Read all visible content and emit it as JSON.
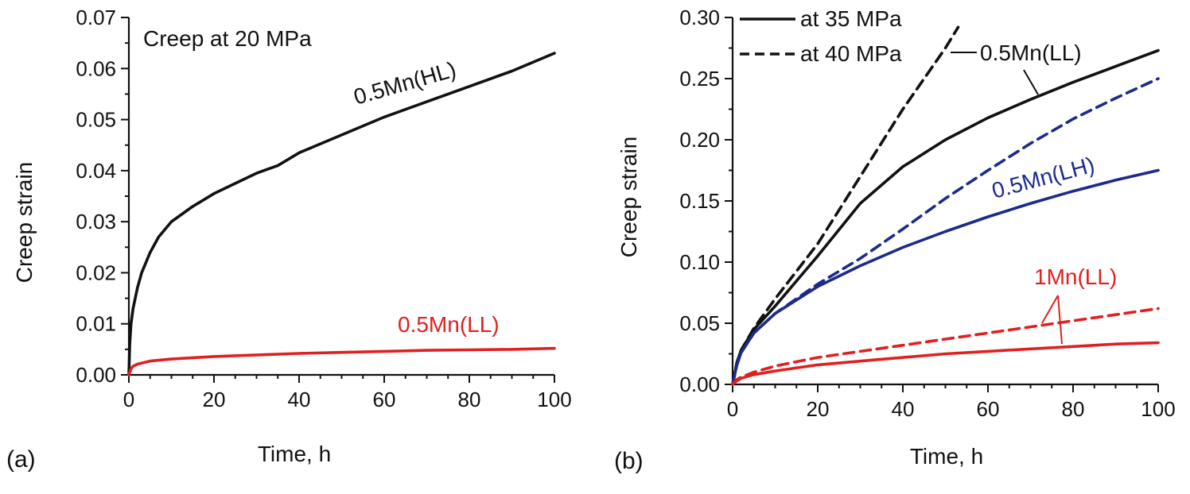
{
  "chart_data": [
    {
      "type": "line",
      "panel_label": "(a)",
      "title": "Creep at 20 MPa",
      "xlabel": "Time, h",
      "ylabel": "Creep strain",
      "xlim": [
        0,
        100
      ],
      "ylim": [
        0,
        0.07
      ],
      "xticks": [
        0,
        20,
        40,
        60,
        80,
        100
      ],
      "yticks": [
        0.0,
        0.01,
        0.02,
        0.03,
        0.04,
        0.05,
        0.06,
        0.07
      ],
      "ytick_labels": [
        "0.00",
        "0.01",
        "0.02",
        "0.03",
        "0.04",
        "0.05",
        "0.06",
        "0.07"
      ],
      "series": [
        {
          "name": "0.5Mn(HL)",
          "color": "#111111",
          "dash": "solid",
          "x": [
            0,
            0.2,
            0.5,
            1,
            2,
            3,
            5,
            7,
            10,
            15,
            20,
            25,
            30,
            35,
            40,
            50,
            60,
            70,
            80,
            90,
            100
          ],
          "y": [
            0,
            0.006,
            0.01,
            0.013,
            0.017,
            0.02,
            0.024,
            0.027,
            0.03,
            0.033,
            0.0355,
            0.0375,
            0.0395,
            0.041,
            0.0435,
            0.047,
            0.0505,
            0.0535,
            0.0565,
            0.0595,
            0.063
          ]
        },
        {
          "name": "0.5Mn(LL)",
          "color": "#e02020",
          "dash": "solid",
          "x": [
            0,
            0.5,
            1,
            2,
            5,
            10,
            20,
            30,
            40,
            50,
            60,
            70,
            80,
            90,
            100
          ],
          "y": [
            0,
            0.0012,
            0.0017,
            0.0021,
            0.0027,
            0.0031,
            0.0036,
            0.0039,
            0.0042,
            0.0044,
            0.0046,
            0.0048,
            0.0049,
            0.005,
            0.0052
          ]
        }
      ],
      "annotations": [
        {
          "text": "0.5Mn(HL)",
          "color": "#111111"
        },
        {
          "text": "0.5Mn(LL)",
          "color": "#e02020"
        }
      ]
    },
    {
      "type": "line",
      "panel_label": "(b)",
      "xlabel": "Time, h",
      "ylabel": "Creep strain",
      "xlim": [
        0,
        100
      ],
      "ylim": [
        0,
        0.3
      ],
      "xticks": [
        0,
        20,
        40,
        60,
        80,
        100
      ],
      "yticks": [
        0.0,
        0.05,
        0.1,
        0.15,
        0.2,
        0.25,
        0.3
      ],
      "ytick_labels": [
        "0.00",
        "0.05",
        "0.10",
        "0.15",
        "0.20",
        "0.25",
        "0.30"
      ],
      "legend": {
        "placement": "top-left",
        "entries": [
          {
            "label": "at 35 MPa",
            "dash": "solid"
          },
          {
            "label": "at 40 MPa",
            "dash": "dashed"
          }
        ]
      },
      "series": [
        {
          "material": "0.5Mn(LL)",
          "stress": "35 MPa",
          "color": "#111111",
          "dash": "solid",
          "x": [
            0,
            1,
            2,
            5,
            10,
            20,
            30,
            40,
            50,
            60,
            70,
            80,
            90,
            100
          ],
          "y": [
            0,
            0.018,
            0.028,
            0.045,
            0.064,
            0.105,
            0.148,
            0.178,
            0.2,
            0.218,
            0.233,
            0.247,
            0.26,
            0.273
          ]
        },
        {
          "material": "0.5Mn(LL)",
          "stress": "40 MPa",
          "color": "#111111",
          "dash": "dashed",
          "x": [
            0,
            1,
            2,
            5,
            10,
            20,
            30,
            40,
            50,
            53
          ],
          "y": [
            0,
            0.018,
            0.028,
            0.046,
            0.07,
            0.115,
            0.17,
            0.225,
            0.275,
            0.292
          ]
        },
        {
          "material": "0.5Mn(LH)",
          "stress": "35 MPa",
          "color": "#1c2a8c",
          "dash": "solid",
          "x": [
            0,
            1,
            2,
            5,
            10,
            20,
            30,
            40,
            50,
            60,
            70,
            80,
            90,
            100
          ],
          "y": [
            0,
            0.016,
            0.026,
            0.042,
            0.058,
            0.08,
            0.097,
            0.112,
            0.125,
            0.137,
            0.148,
            0.158,
            0.167,
            0.175
          ]
        },
        {
          "material": "0.5Mn(LH)",
          "stress": "40 MPa",
          "color": "#1c2a8c",
          "dash": "dashed",
          "x": [
            0,
            1,
            2,
            5,
            10,
            20,
            30,
            40,
            50,
            60,
            70,
            80,
            90,
            100
          ],
          "y": [
            0,
            0.016,
            0.026,
            0.042,
            0.058,
            0.082,
            0.103,
            0.127,
            0.152,
            0.175,
            0.197,
            0.217,
            0.234,
            0.25
          ]
        },
        {
          "material": "1Mn(LL)",
          "stress": "35 MPa",
          "color": "#e02020",
          "dash": "solid",
          "x": [
            0,
            1,
            2,
            5,
            10,
            20,
            30,
            40,
            50,
            60,
            70,
            80,
            90,
            100
          ],
          "y": [
            0,
            0.003,
            0.005,
            0.008,
            0.011,
            0.016,
            0.019,
            0.022,
            0.025,
            0.027,
            0.029,
            0.031,
            0.033,
            0.034
          ]
        },
        {
          "material": "1Mn(LL)",
          "stress": "40 MPa",
          "color": "#e02020",
          "dash": "dashed",
          "x": [
            0,
            1,
            2,
            5,
            10,
            20,
            30,
            40,
            50,
            60,
            70,
            80,
            90,
            100
          ],
          "y": [
            0,
            0.004,
            0.006,
            0.01,
            0.015,
            0.022,
            0.027,
            0.032,
            0.037,
            0.042,
            0.047,
            0.052,
            0.057,
            0.062
          ]
        }
      ],
      "annotations": [
        {
          "text": "0.5Mn(LL)",
          "color": "#111111"
        },
        {
          "text": "0.5Mn(LH)",
          "color": "#1c2a8c"
        },
        {
          "text": "1Mn(LL)",
          "color": "#e02020"
        }
      ]
    }
  ]
}
